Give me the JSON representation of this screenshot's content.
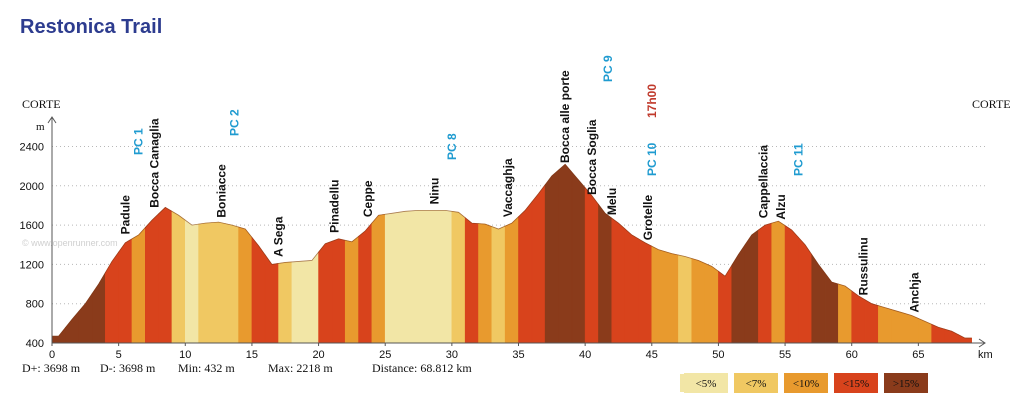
{
  "title": "Restonica Trail",
  "start_label": "CORTE",
  "end_label": "CORTE",
  "watermark": "© www.openrunner.com",
  "stats": [
    "D+: 3698 m",
    "D-: 3698 m",
    "Min: 432 m",
    "Max: 2218 m",
    "Distance: 68.812 km"
  ],
  "legend": [
    {
      "label": "<5%",
      "color": "#f2e6a6"
    },
    {
      "label": "<7%",
      "color": "#f0c862"
    },
    {
      "label": "<10%",
      "color": "#e89a2e"
    },
    {
      "label": "<15%",
      "color": "#d8431c"
    },
    {
      "label": ">15%",
      "color": "#8a3b1b"
    }
  ],
  "chart_data": {
    "type": "area",
    "xlabel": "km",
    "ylabel": "m",
    "xlim": [
      0,
      70
    ],
    "ylim": [
      400,
      2700
    ],
    "xticks": [
      0,
      5,
      10,
      15,
      20,
      25,
      30,
      35,
      40,
      45,
      50,
      55,
      60,
      65
    ],
    "yticks": [
      400,
      800,
      1200,
      1600,
      2000,
      2400
    ],
    "grid": "horizontal dotted",
    "x": [
      0.5,
      1.5,
      2.5,
      3.5,
      4.5,
      5.5,
      6.5,
      7.5,
      8.5,
      9.5,
      10.5,
      11.5,
      12.5,
      13.5,
      14.5,
      15.5,
      16.5,
      17.5,
      18.5,
      19.5,
      20.5,
      21.5,
      22.5,
      23.5,
      24.5,
      25.5,
      26.5,
      27.5,
      28.5,
      29.5,
      30.5,
      31.5,
      32.5,
      33.5,
      34.5,
      35.5,
      36.5,
      37.5,
      38.5,
      39.5,
      40.5,
      41.5,
      42.5,
      43.5,
      44.5,
      45.5,
      46.5,
      47.5,
      48.5,
      49.5,
      50.5,
      51.5,
      52.5,
      53.5,
      54.5,
      55.5,
      56.5,
      57.5,
      58.5,
      59.5,
      60.5,
      61.5,
      62.5,
      63.5,
      64.5,
      65.5,
      66.5,
      67.5,
      68.5
    ],
    "elevation": [
      470,
      640,
      800,
      1000,
      1230,
      1420,
      1500,
      1650,
      1780,
      1700,
      1600,
      1620,
      1630,
      1600,
      1560,
      1390,
      1200,
      1220,
      1230,
      1240,
      1410,
      1460,
      1430,
      1540,
      1700,
      1720,
      1740,
      1750,
      1750,
      1750,
      1730,
      1620,
      1610,
      1560,
      1620,
      1750,
      1920,
      2100,
      2218,
      2060,
      1900,
      1720,
      1620,
      1500,
      1420,
      1350,
      1310,
      1280,
      1240,
      1180,
      1080,
      1300,
      1500,
      1600,
      1640,
      1550,
      1400,
      1200,
      1020,
      980,
      880,
      800,
      760,
      720,
      680,
      620,
      560,
      520,
      450
    ],
    "grade_class": [
      4,
      4,
      4,
      4,
      3,
      3,
      2,
      3,
      3,
      1,
      0,
      1,
      1,
      1,
      2,
      3,
      3,
      1,
      0,
      0,
      3,
      3,
      2,
      3,
      2,
      0,
      0,
      0,
      0,
      0,
      1,
      3,
      2,
      1,
      2,
      3,
      3,
      4,
      4,
      4,
      3,
      4,
      3,
      3,
      3,
      2,
      2,
      1,
      2,
      2,
      3,
      4,
      4,
      3,
      2,
      3,
      3,
      4,
      4,
      2,
      3,
      3,
      2,
      2,
      2,
      2,
      3,
      3,
      3
    ],
    "waypoints": [
      {
        "label": "Padule",
        "km": 5.8,
        "kind": "place"
      },
      {
        "label": "PC 1",
        "km": 6.8,
        "kind": "checkpoint"
      },
      {
        "label": "Bocca Canaglia",
        "km": 8.0,
        "kind": "place"
      },
      {
        "label": "Boniacce",
        "km": 13.0,
        "kind": "place"
      },
      {
        "label": "PC 2",
        "km": 14.0,
        "kind": "checkpoint"
      },
      {
        "label": "A Sega",
        "km": 17.3,
        "kind": "place"
      },
      {
        "label": "Pinadellu",
        "km": 21.5,
        "kind": "place"
      },
      {
        "label": "Ceppe",
        "km": 24.0,
        "kind": "place"
      },
      {
        "label": "Ninu",
        "km": 29.0,
        "kind": "place"
      },
      {
        "label": "PC 8",
        "km": 30.3,
        "kind": "checkpoint"
      },
      {
        "label": "Vaccaghja",
        "km": 34.5,
        "kind": "place"
      },
      {
        "label": "Bocca alle porte",
        "km": 38.8,
        "kind": "place"
      },
      {
        "label": "Bocca Soglia",
        "km": 40.8,
        "kind": "place"
      },
      {
        "label": "PC 9",
        "km": 42.0,
        "kind": "checkpoint"
      },
      {
        "label": "Melu",
        "km": 42.3,
        "kind": "place"
      },
      {
        "label": "17h00",
        "km": 45.3,
        "kind": "time"
      },
      {
        "label": "PC 10",
        "km": 45.3,
        "kind": "checkpoint"
      },
      {
        "label": "Grotelle",
        "km": 45.0,
        "kind": "place"
      },
      {
        "label": "Cappellaccia",
        "km": 53.7,
        "kind": "place"
      },
      {
        "label": "Alzu",
        "km": 55.0,
        "kind": "place"
      },
      {
        "label": "PC 11",
        "km": 56.3,
        "kind": "checkpoint"
      },
      {
        "label": "Russulinu",
        "km": 61.2,
        "kind": "place"
      },
      {
        "label": "Anchja",
        "km": 65.0,
        "kind": "place"
      }
    ]
  }
}
